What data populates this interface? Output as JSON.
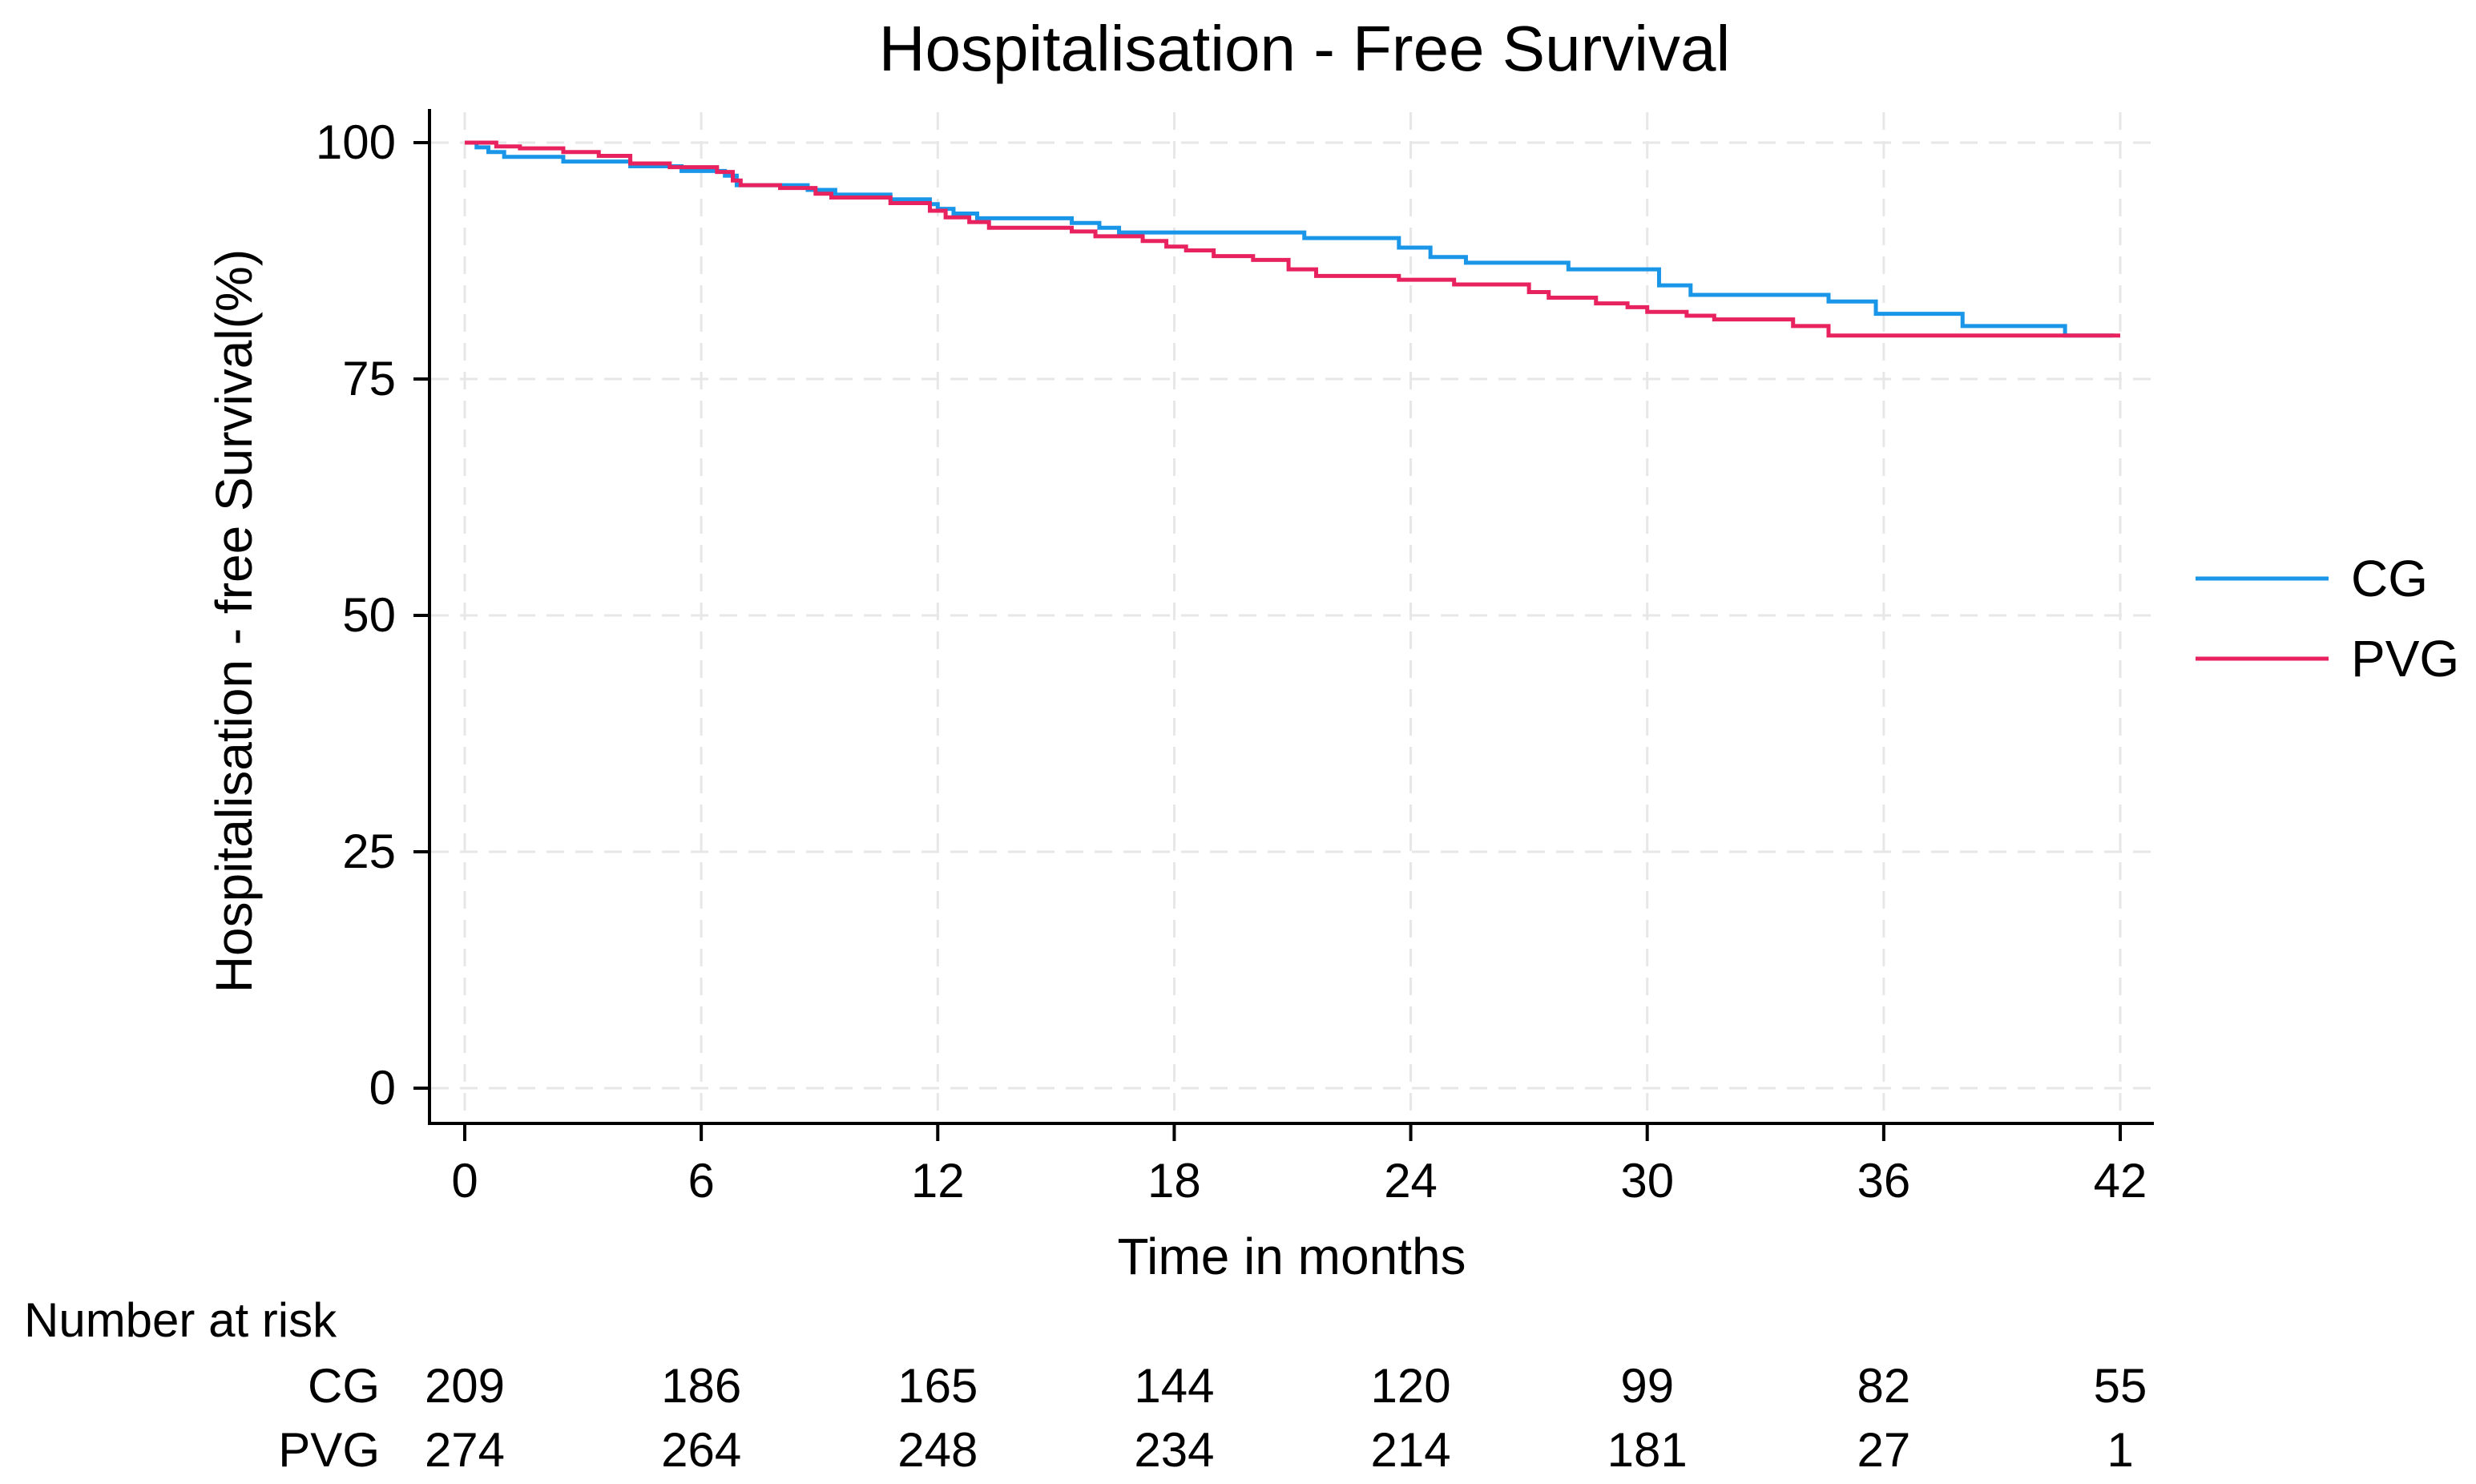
{
  "chart_data": {
    "type": "line",
    "title": "Hospitalisation - Free Survival",
    "xlabel": "Time in months",
    "ylabel": "Hospitalisation - free Survival(%)",
    "xlim": [
      0,
      42
    ],
    "ylim": [
      0,
      100
    ],
    "x_ticks": [
      0,
      6,
      12,
      18,
      24,
      30,
      36,
      42
    ],
    "y_ticks": [
      0,
      25,
      50,
      75,
      100
    ],
    "grid": true,
    "legend_position": "right",
    "series": [
      {
        "name": "CG",
        "color": "#1a96e8",
        "step": true,
        "points": [
          [
            0,
            100
          ],
          [
            0.3,
            99.5
          ],
          [
            0.6,
            99.0
          ],
          [
            1.0,
            98.5
          ],
          [
            2.5,
            98.0
          ],
          [
            4.2,
            97.5
          ],
          [
            5.5,
            97.0
          ],
          [
            6.6,
            96.5
          ],
          [
            6.9,
            95.5
          ],
          [
            8.7,
            95.0
          ],
          [
            9.4,
            94.5
          ],
          [
            10.8,
            94.0
          ],
          [
            11.8,
            93.5
          ],
          [
            12.0,
            93.0
          ],
          [
            12.4,
            92.5
          ],
          [
            13.0,
            92.0
          ],
          [
            15.4,
            91.5
          ],
          [
            16.1,
            91.0
          ],
          [
            16.6,
            90.5
          ],
          [
            21.3,
            89.9
          ],
          [
            23.7,
            88.9
          ],
          [
            24.5,
            87.9
          ],
          [
            25.4,
            87.3
          ],
          [
            28.0,
            86.6
          ],
          [
            30.3,
            84.9
          ],
          [
            31.1,
            83.9
          ],
          [
            34.6,
            83.2
          ],
          [
            35.8,
            81.9
          ],
          [
            38.0,
            80.6
          ],
          [
            40.6,
            79.6
          ],
          [
            41.8,
            79.4
          ]
        ]
      },
      {
        "name": "PVG",
        "color": "#e8225e",
        "step": true,
        "points": [
          [
            0,
            100
          ],
          [
            0.8,
            99.6
          ],
          [
            1.4,
            99.4
          ],
          [
            2.5,
            99.0
          ],
          [
            3.4,
            98.6
          ],
          [
            4.2,
            97.8
          ],
          [
            5.2,
            97.4
          ],
          [
            6.4,
            96.9
          ],
          [
            6.8,
            96.0
          ],
          [
            7.0,
            95.5
          ],
          [
            8.0,
            95.2
          ],
          [
            8.9,
            94.6
          ],
          [
            9.3,
            94.2
          ],
          [
            10.8,
            93.6
          ],
          [
            11.8,
            92.8
          ],
          [
            12.2,
            92.1
          ],
          [
            12.8,
            91.6
          ],
          [
            13.3,
            91.0
          ],
          [
            15.4,
            90.6
          ],
          [
            16.0,
            90.1
          ],
          [
            17.2,
            89.6
          ],
          [
            17.8,
            89.0
          ],
          [
            18.3,
            88.6
          ],
          [
            19.0,
            88.0
          ],
          [
            20.0,
            87.6
          ],
          [
            20.9,
            86.6
          ],
          [
            21.6,
            85.9
          ],
          [
            23.7,
            85.5
          ],
          [
            25.1,
            85.0
          ],
          [
            27.0,
            84.2
          ],
          [
            27.5,
            83.6
          ],
          [
            28.7,
            83.0
          ],
          [
            29.5,
            82.6
          ],
          [
            30.0,
            82.1
          ],
          [
            31.0,
            81.7
          ],
          [
            31.7,
            81.3
          ],
          [
            33.7,
            80.6
          ],
          [
            34.6,
            79.6
          ],
          [
            42.0,
            79.6
          ]
        ]
      }
    ],
    "risk_table": {
      "title": "Number at risk",
      "times": [
        0,
        6,
        12,
        18,
        24,
        30,
        36,
        42
      ],
      "rows": [
        {
          "label": "CG",
          "values": [
            209,
            186,
            165,
            144,
            120,
            99,
            82,
            55
          ]
        },
        {
          "label": "PVG",
          "values": [
            274,
            264,
            248,
            234,
            214,
            181,
            27,
            1
          ]
        }
      ]
    }
  }
}
